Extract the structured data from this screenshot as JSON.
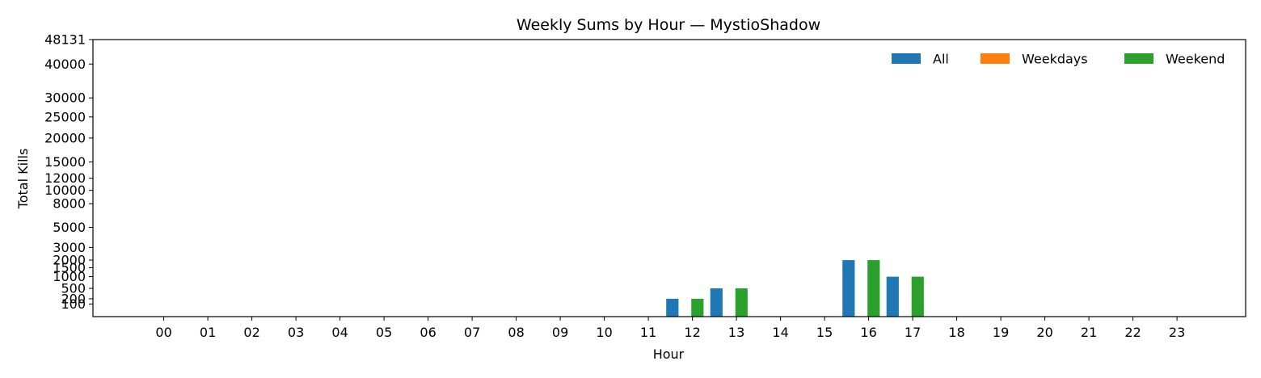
{
  "chart_data": {
    "type": "bar",
    "title": "Weekly Sums by Hour — MystioShadow",
    "xlabel": "Hour",
    "ylabel": "Total Kills",
    "categories": [
      "00",
      "01",
      "02",
      "03",
      "04",
      "05",
      "06",
      "07",
      "08",
      "09",
      "10",
      "11",
      "12",
      "13",
      "14",
      "15",
      "16",
      "17",
      "18",
      "19",
      "20",
      "21",
      "22",
      "23"
    ],
    "y_ticks": [
      100,
      200,
      500,
      1000,
      1500,
      2000,
      3000,
      5000,
      8000,
      10000,
      12000,
      15000,
      20000,
      25000,
      30000,
      40000,
      48131
    ],
    "y_tick_labels": [
      "100",
      "200",
      "500",
      "1000",
      "1500",
      "2000",
      "3000",
      "5000",
      "8000",
      "10000",
      "12000",
      "15000",
      "20000",
      "25000",
      "30000",
      "40000",
      "48131"
    ],
    "ylim": [
      0,
      48131
    ],
    "y_scale": "sqrt",
    "legend_position": "top-right",
    "series": [
      {
        "name": "All",
        "color": "#1f77b4",
        "values": [
          0,
          0,
          0,
          0,
          0,
          0,
          0,
          0,
          0,
          0,
          0,
          0,
          200,
          500,
          0,
          0,
          2000,
          1000,
          0,
          0,
          0,
          0,
          0,
          0
        ]
      },
      {
        "name": "Weekdays",
        "color": "#ff7f0e",
        "values": [
          0,
          0,
          0,
          0,
          0,
          0,
          0,
          0,
          0,
          0,
          0,
          0,
          0,
          0,
          0,
          0,
          0,
          0,
          0,
          0,
          0,
          0,
          0,
          0
        ]
      },
      {
        "name": "Weekend",
        "color": "#2ca02c",
        "values": [
          0,
          0,
          0,
          0,
          0,
          0,
          0,
          0,
          0,
          0,
          0,
          0,
          200,
          500,
          0,
          0,
          2000,
          1000,
          0,
          0,
          0,
          0,
          0,
          0
        ]
      }
    ]
  }
}
